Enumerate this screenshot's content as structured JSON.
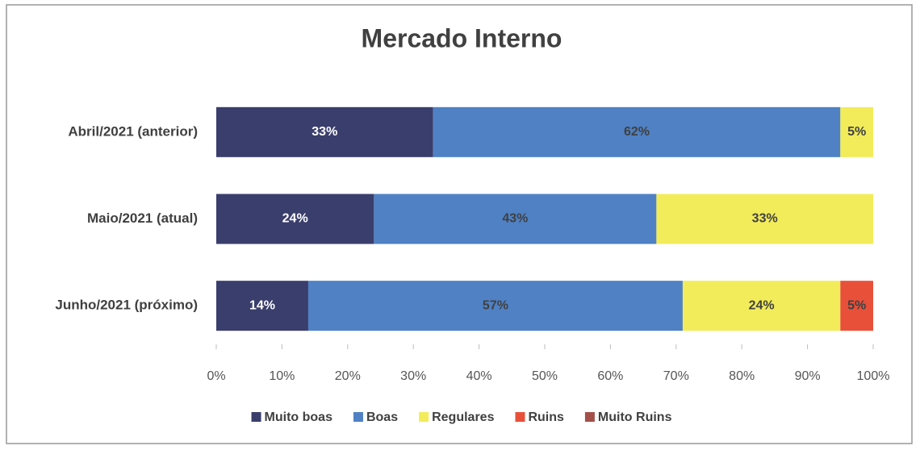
{
  "chart_data": {
    "type": "stacked-bar-horizontal",
    "title": "Mercado Interno",
    "categories": [
      "Abril/2021 (anterior)",
      "Maio/2021 (atual)",
      "Junho/2021 (próximo)"
    ],
    "series": [
      {
        "name": "Muito boas",
        "color": "#3a3e6c",
        "values": [
          33,
          24,
          14
        ],
        "value_labels": [
          "33%",
          "24%",
          "14%"
        ]
      },
      {
        "name": "Boas",
        "color": "#4f81c4",
        "values": [
          62,
          43,
          57
        ],
        "value_labels": [
          "62%",
          "43%",
          "57%"
        ]
      },
      {
        "name": "Regulares",
        "color": "#f2ec5a",
        "values": [
          5,
          33,
          24
        ],
        "value_labels": [
          "5%",
          "33%",
          "24%"
        ]
      },
      {
        "name": "Ruins",
        "color": "#e8503a",
        "values": [
          null,
          null,
          5
        ],
        "value_labels": [
          null,
          null,
          "5%"
        ]
      },
      {
        "name": "Muito Ruins",
        "color": "#a3504a",
        "values": [
          null,
          null,
          null
        ],
        "value_labels": [
          null,
          null,
          null
        ]
      }
    ],
    "xlim": [
      0,
      100
    ],
    "xticks": [
      {
        "value": 0,
        "label": "0%"
      },
      {
        "value": 10,
        "label": "10%"
      },
      {
        "value": 20,
        "label": "20%"
      },
      {
        "value": 30,
        "label": "30%"
      },
      {
        "value": 40,
        "label": "40%"
      },
      {
        "value": 50,
        "label": "50%"
      },
      {
        "value": 60,
        "label": "60%"
      },
      {
        "value": 70,
        "label": "70%"
      },
      {
        "value": 80,
        "label": "80%"
      },
      {
        "value": 90,
        "label": "90%"
      },
      {
        "value": 100,
        "label": "100%"
      }
    ],
    "legend": "bottom"
  }
}
